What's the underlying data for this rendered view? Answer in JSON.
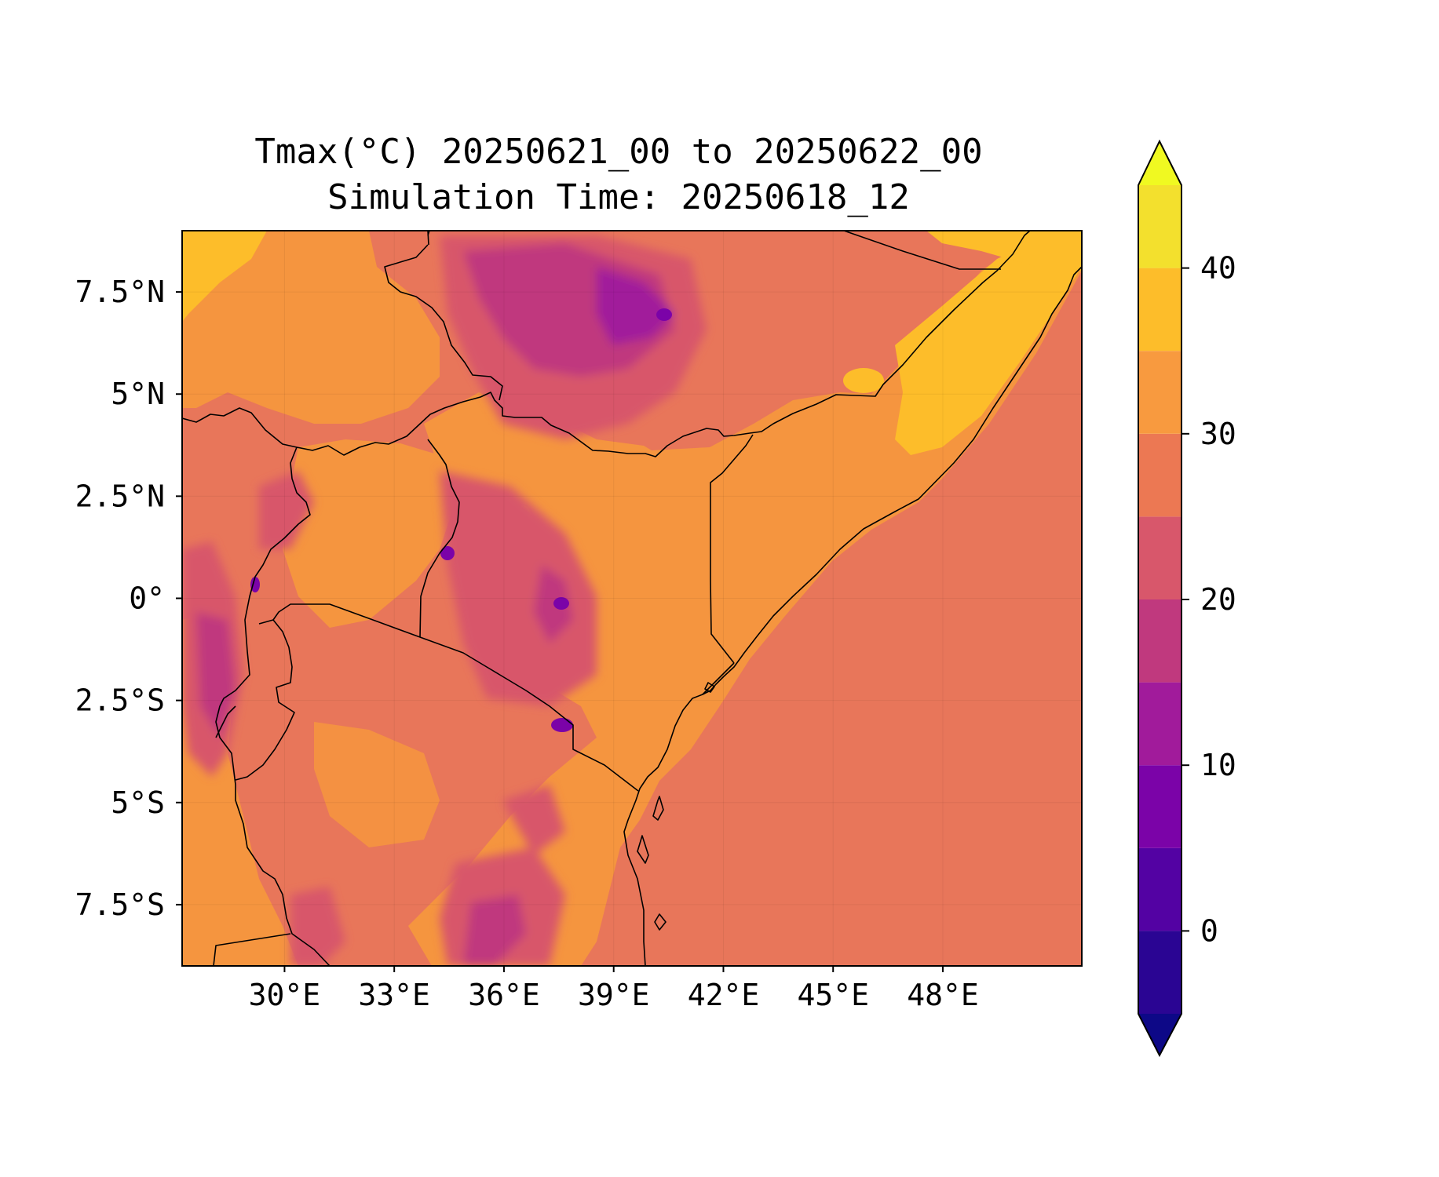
{
  "title_line1": "Tmax(°C) 20250621_00 to 20250622_00",
  "title_line2": "Simulation Time: 20250618_12",
  "map": {
    "lon_range": [
      27.2,
      51.8
    ],
    "lat_range": [
      -9.0,
      9.0
    ],
    "x_ticks": [
      {
        "value": 30,
        "label": "30°E"
      },
      {
        "value": 33,
        "label": "33°E"
      },
      {
        "value": 36,
        "label": "36°E"
      },
      {
        "value": 39,
        "label": "39°E"
      },
      {
        "value": 42,
        "label": "42°E"
      },
      {
        "value": 45,
        "label": "45°E"
      },
      {
        "value": 48,
        "label": "48°E"
      }
    ],
    "y_ticks": [
      {
        "value": 7.5,
        "label": "7.5°N"
      },
      {
        "value": 5,
        "label": "5°N"
      },
      {
        "value": 2.5,
        "label": "2.5°N"
      },
      {
        "value": 0,
        "label": "0°"
      },
      {
        "value": -2.5,
        "label": "2.5°S"
      },
      {
        "value": -5,
        "label": "5°S"
      },
      {
        "value": -7.5,
        "label": "7.5°S"
      }
    ],
    "sea_color": "#e8765a",
    "land_color": "#f5953f"
  },
  "colorbar": {
    "range": [
      -5,
      45
    ],
    "levels": [
      -5,
      0,
      5,
      10,
      15,
      20,
      25,
      30,
      35,
      40,
      45
    ],
    "colors": [
      "#2a0593",
      "#5302a3",
      "#7b03a8",
      "#a11b9b",
      "#c0397e",
      "#d8576b",
      "#ec7853",
      "#f89a3f",
      "#fdbd2a",
      "#f3e02d"
    ],
    "under_color": "#0d0887",
    "over_color": "#f0f921",
    "ticks": [
      {
        "value": 0,
        "label": "0"
      },
      {
        "value": 10,
        "label": "10"
      },
      {
        "value": 20,
        "label": "20"
      },
      {
        "value": 30,
        "label": "30"
      },
      {
        "value": 40,
        "label": "40"
      }
    ]
  }
}
